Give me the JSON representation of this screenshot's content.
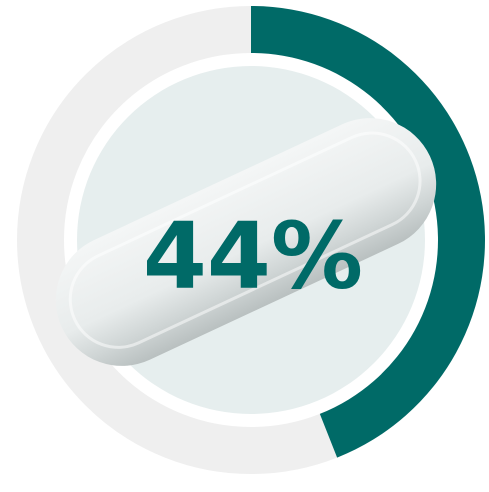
{
  "chart_data": {
    "type": "donut",
    "values": [
      44
    ],
    "value_labels": [
      "44%"
    ],
    "ylim": [
      0,
      100
    ],
    "color": "#006a67",
    "track_color": "#efefef"
  }
}
